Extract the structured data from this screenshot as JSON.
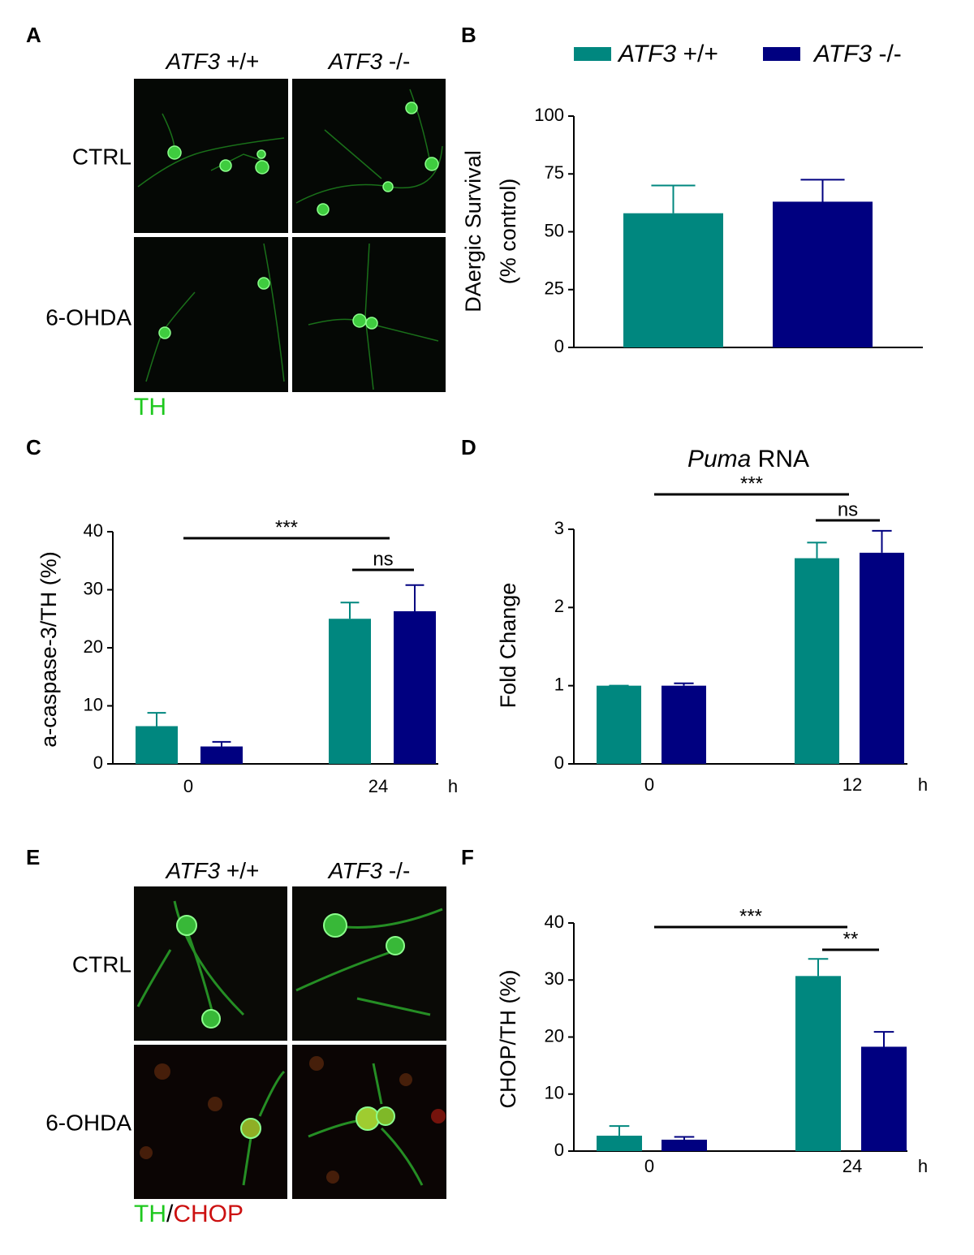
{
  "panel_A": {
    "letter": "A",
    "columns": [
      "ATF3 +/+",
      "ATF3 -/-"
    ],
    "rows": [
      "CTRL",
      "6-OHDA"
    ],
    "stain": [
      "TH"
    ]
  },
  "panel_E": {
    "letter": "E",
    "columns": [
      "ATF3 +/+",
      "ATF3 -/-"
    ],
    "rows": [
      "CTRL",
      "6-OHDA"
    ],
    "stain": [
      "TH",
      "/",
      "CHOP"
    ]
  },
  "chart_data": [
    {
      "type": "bar",
      "letter": "B",
      "y_label": [
        "DAergic Survival",
        "(% control)"
      ],
      "categories": [
        null
      ],
      "series": [
        {
          "name": "ATF3 +/+",
          "color": "#00877f",
          "values": [
            58
          ],
          "errors": [
            12
          ]
        },
        {
          "name": "ATF3 -/-",
          "color": "#000080",
          "values": [
            63
          ],
          "errors": [
            9.5
          ]
        }
      ],
      "ylim": [
        0,
        100
      ],
      "yticks": [
        0,
        25,
        50,
        75,
        100
      ]
    },
    {
      "type": "bar",
      "letter": "C",
      "y_label": [
        "a-caspase-3/TH (%)"
      ],
      "categories": [
        "0",
        "24"
      ],
      "x_unit": "h",
      "series": [
        {
          "color": "#00877f",
          "values": [
            6.5,
            25
          ],
          "errors": [
            2.3,
            2.8
          ]
        },
        {
          "color": "#000080",
          "values": [
            3,
            26.3
          ],
          "errors": [
            0.8,
            4.5
          ]
        }
      ],
      "ylim": [
        0,
        40
      ],
      "yticks": [
        0,
        10,
        20,
        30,
        40
      ],
      "annotations": [
        "***",
        "ns"
      ]
    },
    {
      "type": "bar",
      "letter": "D",
      "title": "Puma RNA",
      "y_label": [
        "Fold Change"
      ],
      "categories": [
        "0",
        "12"
      ],
      "x_unit": "h",
      "series": [
        {
          "color": "#00877f",
          "values": [
            1,
            2.63
          ],
          "errors": [
            0,
            0.2
          ]
        },
        {
          "color": "#000080",
          "values": [
            1,
            2.7
          ],
          "errors": [
            0.03,
            0.28
          ]
        }
      ],
      "ylim": [
        0,
        3
      ],
      "yticks": [
        0,
        1,
        2,
        3
      ],
      "annotations": [
        "***",
        "ns"
      ]
    },
    {
      "type": "bar",
      "letter": "F",
      "y_label": [
        "CHOP/TH (%)"
      ],
      "categories": [
        "0",
        "24"
      ],
      "x_unit": "h",
      "series": [
        {
          "color": "#00877f",
          "values": [
            2.7,
            30.7
          ],
          "errors": [
            1.7,
            3
          ]
        },
        {
          "color": "#000080",
          "values": [
            2,
            18.3
          ],
          "errors": [
            0.5,
            2.6
          ]
        }
      ],
      "ylim": [
        0,
        40
      ],
      "yticks": [
        0,
        10,
        20,
        30,
        40
      ],
      "annotations": [
        "***",
        "**"
      ]
    }
  ]
}
